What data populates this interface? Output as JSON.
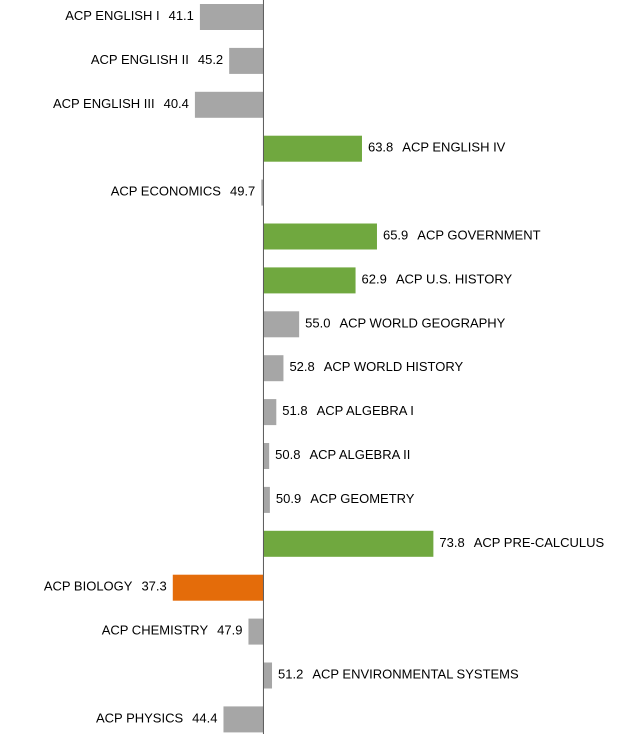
{
  "chart_data": {
    "type": "diverging-bar",
    "categories": [
      "ACP ENGLISH I",
      "ACP ENGLISH II",
      "ACP ENGLISH III",
      "ACP ENGLISH IV",
      "ACP ECONOMICS",
      "ACP GOVERNMENT",
      "ACP U.S. HISTORY",
      "ACP WORLD GEOGRAPHY",
      "ACP WORLD HISTORY",
      "ACP ALGEBRA I",
      "ACP ALGEBRA II",
      "ACP GEOMETRY",
      "ACP PRE-CALCULUS",
      "ACP BIOLOGY",
      "ACP CHEMISTRY",
      "ACP ENVIRONMENTAL SYSTEMS",
      "ACP PHYSICS"
    ],
    "values": [
      41.1,
      45.2,
      40.4,
      63.8,
      49.7,
      65.9,
      62.9,
      55.0,
      52.8,
      51.8,
      50.8,
      50.9,
      73.8,
      37.3,
      47.9,
      51.2,
      44.4
    ],
    "value_labels": [
      "41.1",
      "45.2",
      "40.4",
      "63.8",
      "49.7",
      "65.9",
      "62.9",
      "55.0",
      "52.8",
      "51.8",
      "50.8",
      "50.9",
      "73.8",
      "37.3",
      "47.9",
      "51.2",
      "44.4"
    ],
    "colors": [
      "#a6a6a6",
      "#a6a6a6",
      "#a6a6a6",
      "#70a83f",
      "#a6a6a6",
      "#70a83f",
      "#70a83f",
      "#a6a6a6",
      "#a6a6a6",
      "#a6a6a6",
      "#a6a6a6",
      "#a6a6a6",
      "#70a83f",
      "#e46c0a",
      "#a6a6a6",
      "#a6a6a6",
      "#a6a6a6"
    ],
    "baseline": 50,
    "xlim": [
      13.1,
      102.6
    ]
  }
}
